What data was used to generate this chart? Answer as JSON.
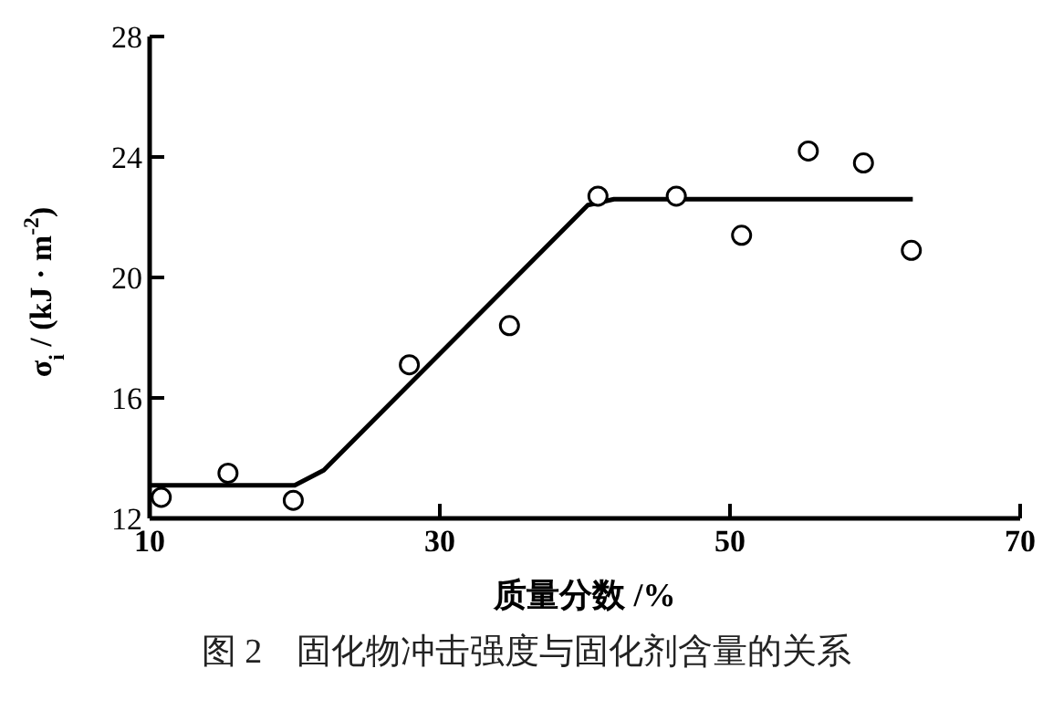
{
  "chart_data": {
    "type": "scatter",
    "xlabel": "质量分数 /%",
    "ylabel": "σ$_{i}$ / (kJ · m$^{-2}$)",
    "xlim": [
      10,
      70
    ],
    "xticks": [
      10,
      30,
      50,
      70
    ],
    "ylim": [
      12,
      28
    ],
    "yticks": [
      12,
      16,
      20,
      24,
      28
    ],
    "series": [
      {
        "marker": "circle",
        "color": "#000000",
        "x": [
          10.8,
          15.4,
          19.9,
          27.9,
          34.8,
          40.9,
          46.3,
          50.8,
          55.4,
          59.2,
          62.5
        ],
        "values": [
          12.7,
          13.5,
          12.6,
          17.1,
          18.4,
          22.7,
          22.7,
          21.4,
          24.2,
          23.8,
          20.9
        ]
      },
      {
        "type": "line",
        "marker": "none",
        "line_style": "solid",
        "color": "#000000",
        "x": [
          10,
          20,
          22,
          40.2,
          42,
          62.6
        ],
        "values": [
          13.1,
          13.1,
          13.6,
          22.4,
          22.6,
          22.6
        ]
      }
    ],
    "annotations": [
      "图 2　固化物冲击强度与固化剂含量的关系"
    ]
  }
}
